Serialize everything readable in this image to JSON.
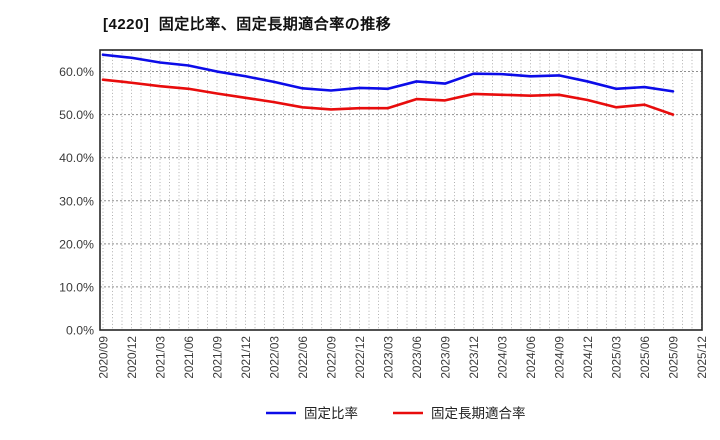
{
  "header": {
    "title": "[4220]  固定比率、固定長期適合率の推移"
  },
  "chart_data": {
    "type": "line",
    "title": "[4220] 固定比率、固定長期適合率の推移",
    "categories": [
      "2020/09",
      "2020/12",
      "2021/03",
      "2021/06",
      "2021/09",
      "2021/12",
      "2022/03",
      "2022/06",
      "2022/09",
      "2022/12",
      "2023/03",
      "2023/06",
      "2023/09",
      "2023/12",
      "2024/03",
      "2024/06",
      "2024/09",
      "2024/12",
      "2025/03",
      "2025/06",
      "2025/09",
      "2025/12"
    ],
    "series": [
      {
        "name": "固定比率",
        "color": "#0c0ce8",
        "values": [
          63.9,
          63.2,
          62.1,
          61.4,
          60.0,
          58.9,
          57.6,
          56.1,
          55.6,
          56.2,
          56.0,
          57.7,
          57.2,
          59.5,
          59.4,
          58.9,
          59.1,
          57.7,
          56.0,
          56.4,
          55.4,
          null
        ]
      },
      {
        "name": "固定長期適合率",
        "color": "#e80c0c",
        "values": [
          58.1,
          57.4,
          56.6,
          56.0,
          54.9,
          53.9,
          52.9,
          51.7,
          51.2,
          51.5,
          51.5,
          53.6,
          53.3,
          54.8,
          54.6,
          54.4,
          54.6,
          53.4,
          51.7,
          52.3,
          50.0,
          null
        ]
      }
    ],
    "xlabel": "",
    "ylabel": "",
    "ylim": [
      0,
      65
    ],
    "yticks": [
      0,
      10,
      20,
      30,
      40,
      50,
      60
    ],
    "ytick_labels": [
      "0.0%",
      "10.0%",
      "20.0%",
      "30.0%",
      "40.0%",
      "50.0%",
      "60.0%"
    ],
    "grid": {
      "horizontal": "dashed-major-10pct",
      "vertical": "dotted-monthly"
    },
    "legend_position": "bottom-center"
  }
}
